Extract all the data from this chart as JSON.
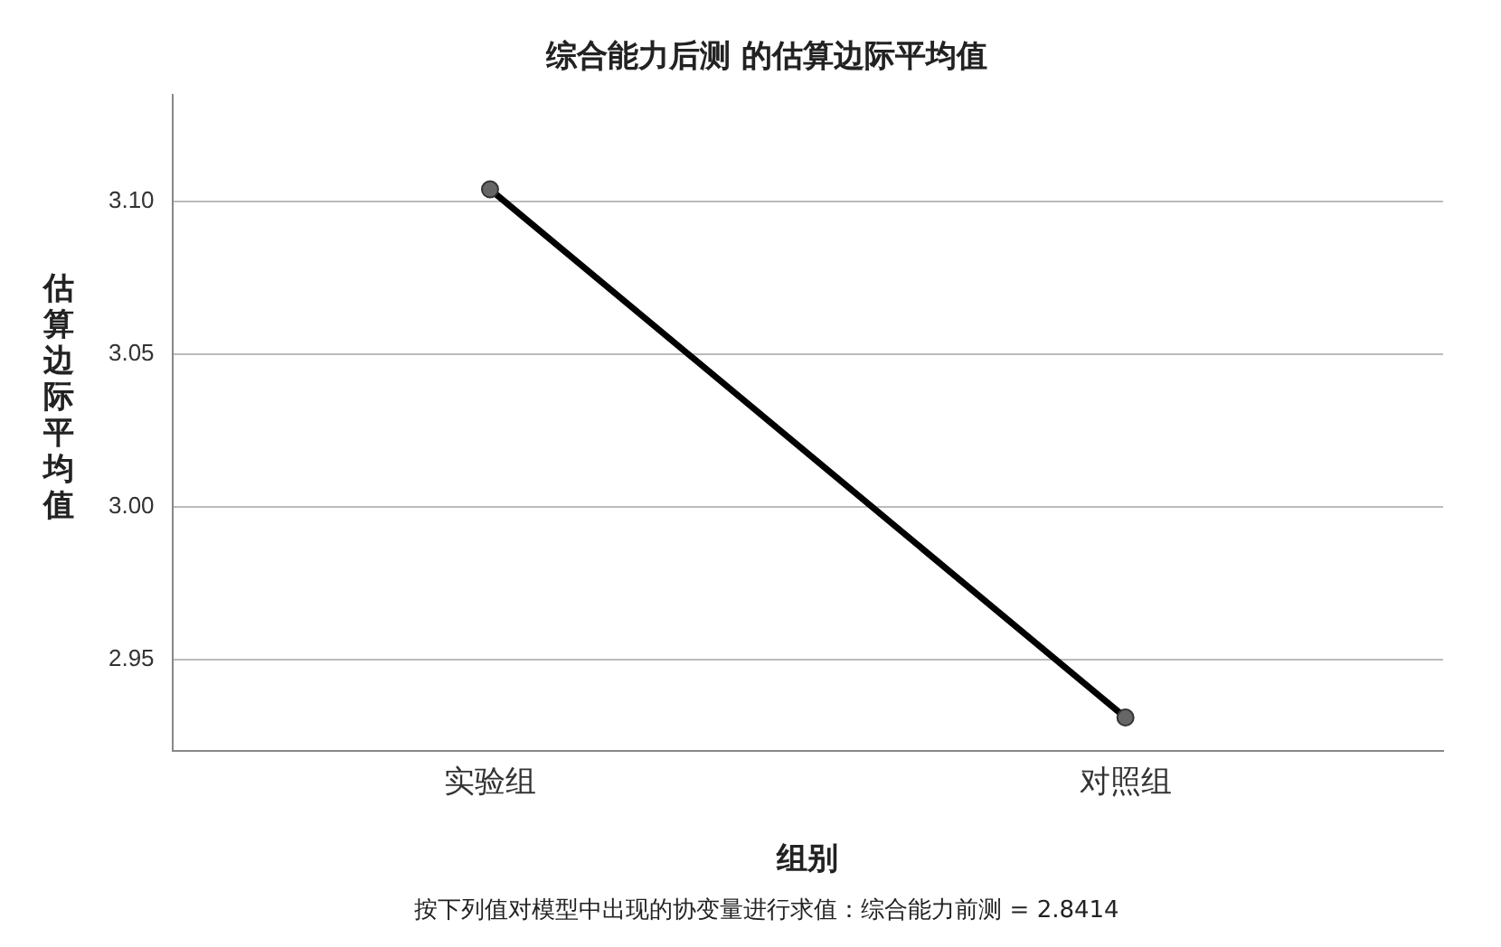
{
  "chart_data": {
    "type": "line",
    "title": "综合能力后测 的估算边际平均值",
    "xlabel": "组别",
    "ylabel": "估算边际平均值",
    "annotations": [
      "按下列值对模型中出现的协变量进行求值：综合能力前测 = 2.8414"
    ],
    "categories": [
      "实验组",
      "对照组"
    ],
    "series": [
      {
        "color": "#000000",
        "values": [
          3.104,
          2.931
        ]
      }
    ],
    "ylim": [
      2.92,
      3.135
    ],
    "yticks": [
      2.95,
      {
        "value": 3.0,
        "label": "3.00"
      },
      3.05,
      {
        "value": 3.1,
        "label": "3.10"
      }
    ],
    "grid": "y",
    "legend": false,
    "marker": "circle",
    "line_style": "solid"
  }
}
